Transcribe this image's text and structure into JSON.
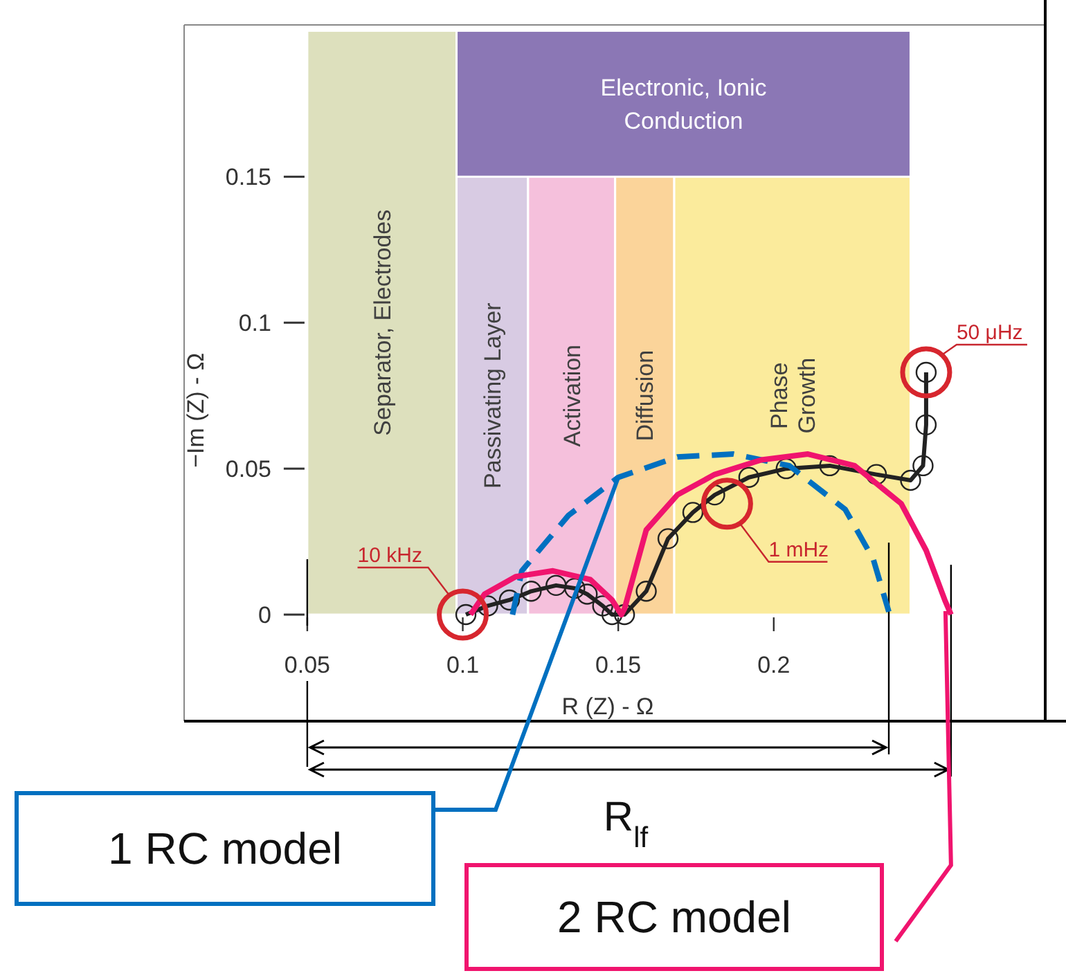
{
  "chart_data": {
    "type": "line",
    "xlabel": "R (Z) - Ω",
    "ylabel": "−Im (Z) - Ω",
    "xlim": [
      0.0104,
      0.2873
    ],
    "ylim": [
      -0.0365,
      0.202
    ],
    "xticks": [
      0.05,
      0.1,
      0.15,
      0.2
    ],
    "yticks": [
      0,
      0.05,
      0.1,
      0.15
    ],
    "grid": false,
    "legend": false,
    "bands": [
      {
        "axis": "x",
        "from": 0.05,
        "to": 0.098,
        "label": "Separator, Electrodes",
        "color": "#dde0bd"
      },
      {
        "axis": "x",
        "from": 0.098,
        "to": 0.121,
        "label": "Passivating Layer",
        "color": "#d8cbe3"
      },
      {
        "axis": "x",
        "from": 0.121,
        "to": 0.149,
        "label": "Activation",
        "color": "#f5c0dc"
      },
      {
        "axis": "x",
        "from": 0.149,
        "to": 0.168,
        "label": "Diffusion",
        "color": "#fbd49a"
      },
      {
        "axis": "x",
        "from": 0.168,
        "to": 0.244,
        "label": "Phase\nGrowth",
        "color": "#fbeb9c"
      },
      {
        "axis": "y",
        "from": 0.15,
        "to": 0.2,
        "label": "Electronic, Ionic\nConduction",
        "color": "#8b77b5"
      }
    ],
    "series": [
      {
        "color": "#222222",
        "marker": "circle",
        "line_style": "solid",
        "x": [
          0.101,
          0.108,
          0.115,
          0.122,
          0.13,
          0.136,
          0.14,
          0.145,
          0.148,
          0.152,
          0.159,
          0.166,
          0.174,
          0.181,
          0.192,
          0.204,
          0.218,
          0.233,
          0.244,
          0.248,
          0.249,
          0.249
        ],
        "values": [
          0,
          0.003,
          0.005,
          0.008,
          0.01,
          0.009,
          0.007,
          0.003,
          0,
          0,
          0.008,
          0.026,
          0.035,
          0.041,
          0.047,
          0.05,
          0.051,
          0.048,
          0.046,
          0.051,
          0.065,
          0.083
        ]
      },
      {
        "name": "1 RC model",
        "color": "#0070c0",
        "marker": "none",
        "line_style": "dashed",
        "x": [
          0.116,
          0.119,
          0.134,
          0.15,
          0.169,
          0.187,
          0.205,
          0.223,
          0.232,
          0.237
        ],
        "values": [
          0,
          0.015,
          0.034,
          0.047,
          0.054,
          0.055,
          0.051,
          0.036,
          0.019,
          0.001
        ]
      },
      {
        "name": "2 RC model",
        "color": "#f0146e",
        "marker": "none",
        "line_style": "solid",
        "x": [
          0.1025,
          0.107,
          0.117,
          0.129,
          0.141,
          0.148,
          0.151,
          0.152,
          0.159,
          0.169,
          0.181,
          0.196,
          0.211,
          0.226,
          0.241,
          0.249,
          0.255,
          0.257
        ],
        "values": [
          0,
          0.007,
          0.013,
          0.015,
          0.012,
          0.005,
          0,
          0.002,
          0.029,
          0.041,
          0.048,
          0.053,
          0.055,
          0.051,
          0.038,
          0.022,
          0.005,
          0
        ]
      }
    ],
    "annotations": [
      {
        "text": "10 kHz",
        "x": 0.1,
        "y": 0
      },
      {
        "text": "1 mHz",
        "x": 0.185,
        "y": 0.038
      },
      {
        "text": "50 μHz",
        "x": 0.249,
        "y": 0.083
      },
      "R$_{lf}$"
    ]
  }
}
